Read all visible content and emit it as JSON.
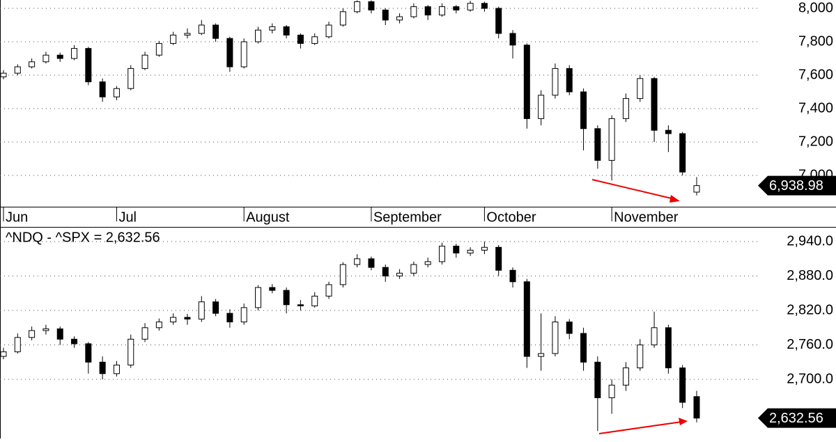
{
  "chart_data": [
    {
      "type": "candlestick",
      "categories": [
        "Jun",
        null,
        null,
        null,
        null,
        null,
        null,
        null,
        "Jul",
        null,
        null,
        null,
        null,
        null,
        null,
        null,
        null,
        "August",
        null,
        null,
        null,
        null,
        null,
        null,
        null,
        null,
        "September",
        null,
        null,
        null,
        null,
        null,
        null,
        null,
        "October",
        null,
        null,
        null,
        null,
        null,
        null,
        null,
        null,
        "November",
        null,
        null,
        null,
        null,
        null,
        null
      ],
      "open": [
        7590,
        7612,
        7650,
        7680,
        7720,
        7700,
        7760,
        7560,
        7470,
        7520,
        7640,
        7720,
        7790,
        7840,
        7850,
        7900,
        7820,
        7650,
        7800,
        7870,
        7890,
        7840,
        7790,
        7830,
        7900,
        7980,
        8040,
        7990,
        7930,
        7950,
        8010,
        7960,
        8010,
        7990,
        8030,
        8000,
        7850,
        7780,
        7340,
        7480,
        7640,
        7500,
        7280,
        7090,
        7340,
        7460,
        7580,
        7270,
        7250,
        6900
      ],
      "high": [
        7630,
        7665,
        7700,
        7740,
        7735,
        7780,
        7770,
        7580,
        7535,
        7660,
        7740,
        7805,
        7860,
        7880,
        7930,
        7910,
        7830,
        7820,
        7890,
        7910,
        7900,
        7850,
        7850,
        7920,
        8000,
        8048,
        8048,
        8000,
        7970,
        8030,
        8020,
        8030,
        8020,
        8045,
        8040,
        8010,
        7870,
        7790,
        7510,
        7670,
        7660,
        7520,
        7300,
        7360,
        7490,
        7600,
        7590,
        7300,
        7260,
        6990
      ],
      "low": [
        7575,
        7600,
        7640,
        7670,
        7680,
        7690,
        7540,
        7440,
        7450,
        7510,
        7630,
        7710,
        7780,
        7820,
        7840,
        7800,
        7620,
        7640,
        7790,
        7850,
        7820,
        7760,
        7780,
        7820,
        7890,
        7970,
        7970,
        7900,
        7910,
        7940,
        7930,
        7950,
        7970,
        7980,
        7980,
        7820,
        7700,
        7280,
        7300,
        7460,
        7480,
        7150,
        7040,
        6970,
        7320,
        7440,
        7200,
        7140,
        7000,
        6880
      ],
      "close": [
        7612,
        7650,
        7680,
        7720,
        7700,
        7760,
        7560,
        7470,
        7520,
        7640,
        7720,
        7790,
        7840,
        7850,
        7900,
        7820,
        7650,
        7800,
        7870,
        7890,
        7840,
        7790,
        7830,
        7900,
        7980,
        8040,
        7990,
        7930,
        7950,
        8010,
        7960,
        8010,
        7990,
        8030,
        8000,
        7850,
        7780,
        7340,
        7480,
        7640,
        7500,
        7280,
        7090,
        7340,
        7460,
        7580,
        7270,
        7250,
        7020,
        6938.98
      ],
      "last": {
        "value": 6938.98,
        "label": "6,938.98"
      },
      "ylim": [
        6812.5,
        8050
      ],
      "yticks": [
        {
          "value": 7000,
          "label": "7,000"
        },
        {
          "value": 7200,
          "label": "7,200"
        },
        {
          "value": 7400,
          "label": "7,400"
        },
        {
          "value": 7600,
          "label": "7,600"
        },
        {
          "value": 7800,
          "label": "7,800"
        },
        {
          "value": 8000,
          "label": "8,000"
        }
      ],
      "grid": true
    },
    {
      "type": "candlestick",
      "title": "^NDQ - ^SPX = 2,632.56",
      "open": [
        2740,
        2748,
        2773,
        2785,
        2788,
        2770,
        2762,
        2730,
        2710,
        2725,
        2770,
        2790,
        2800,
        2808,
        2805,
        2835,
        2815,
        2800,
        2825,
        2860,
        2855,
        2830,
        2828,
        2845,
        2865,
        2900,
        2910,
        2895,
        2880,
        2885,
        2900,
        2905,
        2932,
        2920,
        2925,
        2930,
        2890,
        2870,
        2740,
        2745,
        2800,
        2780,
        2730,
        2668,
        2690,
        2720,
        2760,
        2790,
        2720,
        2670
      ],
      "high": [
        2755,
        2780,
        2792,
        2795,
        2792,
        2775,
        2765,
        2740,
        2732,
        2778,
        2798,
        2806,
        2815,
        2814,
        2845,
        2840,
        2822,
        2832,
        2864,
        2866,
        2860,
        2838,
        2852,
        2870,
        2904,
        2918,
        2914,
        2900,
        2892,
        2905,
        2912,
        2938,
        2936,
        2930,
        2940,
        2934,
        2895,
        2875,
        2815,
        2810,
        2805,
        2790,
        2740,
        2700,
        2730,
        2770,
        2818,
        2795,
        2725,
        2680
      ],
      "low": [
        2735,
        2745,
        2768,
        2778,
        2760,
        2755,
        2710,
        2700,
        2705,
        2720,
        2765,
        2785,
        2795,
        2795,
        2800,
        2810,
        2790,
        2795,
        2820,
        2850,
        2815,
        2820,
        2825,
        2840,
        2860,
        2895,
        2890,
        2870,
        2875,
        2880,
        2895,
        2900,
        2912,
        2915,
        2918,
        2880,
        2860,
        2720,
        2715,
        2740,
        2770,
        2715,
        2610,
        2640,
        2680,
        2715,
        2755,
        2710,
        2650,
        2625
      ],
      "close": [
        2748,
        2773,
        2785,
        2788,
        2770,
        2762,
        2730,
        2710,
        2725,
        2770,
        2790,
        2800,
        2808,
        2805,
        2835,
        2815,
        2800,
        2825,
        2860,
        2855,
        2830,
        2828,
        2845,
        2865,
        2900,
        2910,
        2895,
        2880,
        2885,
        2900,
        2905,
        2932,
        2920,
        2925,
        2930,
        2890,
        2870,
        2740,
        2745,
        2800,
        2780,
        2730,
        2668,
        2690,
        2720,
        2760,
        2790,
        2720,
        2660,
        2632.56
      ],
      "last": {
        "value": 2632.56,
        "label": "2,632.56"
      },
      "ylim": [
        2597,
        2965.5
      ],
      "yticks": [
        {
          "value": 2700,
          "label": "2,700.0"
        },
        {
          "value": 2760,
          "label": "2,760.0"
        },
        {
          "value": 2820,
          "label": "2,820.0"
        },
        {
          "value": 2880,
          "label": "2,880.0"
        },
        {
          "value": 2940,
          "label": "2,940.0"
        }
      ],
      "grid": true
    }
  ]
}
